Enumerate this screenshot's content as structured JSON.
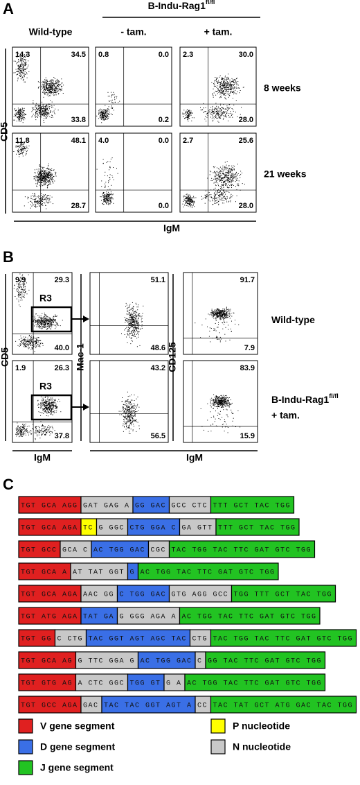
{
  "panel_a": {
    "label": "A",
    "group_title": "B-Indu-Rag1",
    "group_title_sup": "fl/fl",
    "columns": [
      "Wild-type",
      "- tam.",
      "+ tam."
    ],
    "rows": [
      "8 weeks",
      "21 weeks"
    ],
    "y_axis": "CD5",
    "x_axis": "IgM",
    "plots": [
      [
        {
          "ul": "14.3",
          "ur": "34.5",
          "lr": "33.8"
        },
        {
          "ul": "0.8",
          "ur": "0.0",
          "lr": "0.2"
        },
        {
          "ul": "2.3",
          "ur": "30.0",
          "lr": "28.0"
        }
      ],
      [
        {
          "ul": "11.8",
          "ur": "48.1",
          "lr": "28.7"
        },
        {
          "ul": "4.0",
          "ur": "0.0",
          "lr": "0.0"
        },
        {
          "ul": "2.7",
          "ur": "25.6",
          "lr": "28.0"
        }
      ]
    ]
  },
  "panel_b": {
    "label": "B",
    "gate": "R3",
    "rows": [
      {
        "label": "Wild-type"
      },
      {
        "label": "B-Indu-Rag1",
        "label_sup": "fl/fl",
        "label_line2": "+ tam."
      }
    ],
    "y_axes": [
      "CD5",
      "Mac-1",
      "CD125"
    ],
    "x_axes": [
      "IgM",
      "IgM"
    ],
    "plots": [
      [
        {
          "ul": "9.9",
          "ur": "29.3",
          "lr": "40.0"
        },
        {
          "ur": "51.1",
          "lr": "48.6"
        },
        {
          "ur": "91.7",
          "lr": "7.9"
        }
      ],
      [
        {
          "ul": "1.9",
          "ur": "26.3",
          "lr": "37.8"
        },
        {
          "ur": "43.2",
          "lr": "56.5"
        },
        {
          "ur": "83.9",
          "lr": "15.9"
        }
      ]
    ]
  },
  "panel_c": {
    "label": "C",
    "sequences": [
      [
        {
          "color": "#e02020",
          "text": "TGT GCA AGG"
        },
        {
          "color": "#c8c8c8",
          "text": "GAT GAG A"
        },
        {
          "color": "#3a6fe6",
          "text": "GG GAC"
        },
        {
          "color": "#c8c8c8",
          "text": "GCC CTC"
        },
        {
          "color": "#22c322",
          "text": "TTT GCT TAC TGG"
        }
      ],
      [
        {
          "color": "#e02020",
          "text": "TGT GCA AGA"
        },
        {
          "color": "#ffff00",
          "text": "TC"
        },
        {
          "color": "#c8c8c8",
          "text": "G GGC"
        },
        {
          "color": "#3a6fe6",
          "text": "CTG GGA C"
        },
        {
          "color": "#c8c8c8",
          "text": "GA GTT"
        },
        {
          "color": "#22c322",
          "text": "TTT GCT TAC TGG"
        }
      ],
      [
        {
          "color": "#e02020",
          "text": "TGT GCC"
        },
        {
          "color": "#c8c8c8",
          "text": "GCA C"
        },
        {
          "color": "#3a6fe6",
          "text": "AC TGG GAC"
        },
        {
          "color": "#c8c8c8",
          "text": "CGC"
        },
        {
          "color": "#22c322",
          "text": "TAC TGG TAC TTC GAT GTC TGG"
        }
      ],
      [
        {
          "color": "#e02020",
          "text": "TGT GCA A"
        },
        {
          "color": "#c8c8c8",
          "text": "AT TAT GGT"
        },
        {
          "color": "#3a6fe6",
          "text": "G"
        },
        {
          "color": "#22c322",
          "text": "AC TGG TAC TTC GAT GTC TGG"
        }
      ],
      [
        {
          "color": "#e02020",
          "text": "TGT GCA AGA"
        },
        {
          "color": "#c8c8c8",
          "text": "AAC GG"
        },
        {
          "color": "#3a6fe6",
          "text": "C TGG GAC"
        },
        {
          "color": "#c8c8c8",
          "text": "GTG AGG GCC"
        },
        {
          "color": "#22c322",
          "text": "TGG TTT GCT TAC TGG"
        }
      ],
      [
        {
          "color": "#e02020",
          "text": "TGT ATG AGA"
        },
        {
          "color": "#3a6fe6",
          "text": "TAT GA"
        },
        {
          "color": "#c8c8c8",
          "text": "G GGG AGA A"
        },
        {
          "color": "#22c322",
          "text": "AC TGG TAC TTC GAT GTC TGG"
        }
      ],
      [
        {
          "color": "#e02020",
          "text": "TGT GG"
        },
        {
          "color": "#c8c8c8",
          "text": "C CTG"
        },
        {
          "color": "#3a6fe6",
          "text": "TAC GGT AGT AGC TAC"
        },
        {
          "color": "#c8c8c8",
          "text": "CTG"
        },
        {
          "color": "#22c322",
          "text": "TAC TGG TAC TTC GAT GTC TGG"
        }
      ],
      [
        {
          "color": "#e02020",
          "text": "TGT GCA AG"
        },
        {
          "color": "#c8c8c8",
          "text": "G TTC GGA G"
        },
        {
          "color": "#3a6fe6",
          "text": "AC TGG GAC"
        },
        {
          "color": "#c8c8c8",
          "text": "C"
        },
        {
          "color": "#22c322",
          "text": "GG TAC TTC GAT GTC TGG"
        }
      ],
      [
        {
          "color": "#e02020",
          "text": "TGT GTG AG"
        },
        {
          "color": "#c8c8c8",
          "text": "A CTC GGC"
        },
        {
          "color": "#3a6fe6",
          "text": "TGG GT"
        },
        {
          "color": "#c8c8c8",
          "text": "G A"
        },
        {
          "color": "#22c322",
          "text": "AC TGG TAC TTC GAT GTC TGG"
        }
      ],
      [
        {
          "color": "#e02020",
          "text": "TGT GCC AGA"
        },
        {
          "color": "#c8c8c8",
          "text": "GAC"
        },
        {
          "color": "#3a6fe6",
          "text": "TAC TAC GGT AGT A"
        },
        {
          "color": "#c8c8c8",
          "text": "CC"
        },
        {
          "color": "#22c322",
          "text": "TAC TAT GCT ATG GAC TAC TGG"
        }
      ]
    ],
    "legend": [
      {
        "label": "V gene segment",
        "color": "#e02020"
      },
      {
        "label": "D gene segment",
        "color": "#3a6fe6"
      },
      {
        "label": "J gene segment",
        "color": "#22c322"
      },
      {
        "label": "P nucleotide",
        "color": "#ffff00"
      },
      {
        "label": "N nucleotide",
        "color": "#c8c8c8"
      }
    ]
  }
}
